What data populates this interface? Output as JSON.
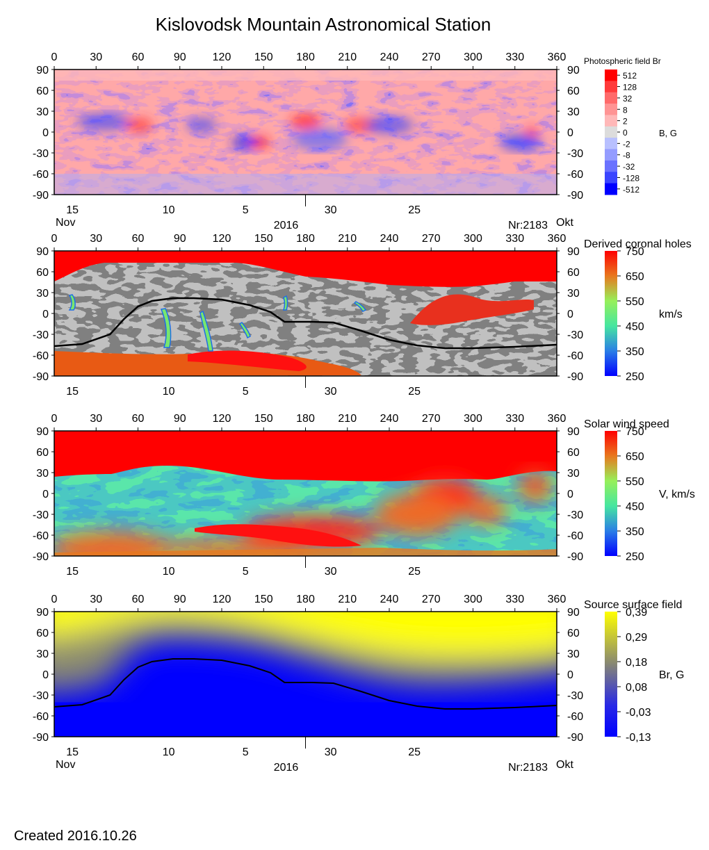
{
  "title": "Kislovodsk Mountain Astronomical Station",
  "created": "Created  2016.10.26",
  "chart_data": [
    {
      "type": "heatmap",
      "title": "Photospheric field Br",
      "unit_label": "B, G",
      "x_ticks": [
        0,
        30,
        60,
        90,
        120,
        150,
        180,
        210,
        240,
        270,
        300,
        330,
        360
      ],
      "y_ticks": [
        90,
        60,
        30,
        0,
        -30,
        -60,
        -90
      ],
      "date_ticks": [
        "15",
        "10",
        "5",
        "30",
        "25"
      ],
      "month_left": "Nov",
      "month_right": "Okt",
      "year": "2016",
      "rotation": "Nr:2183",
      "colorbar": {
        "labels": [
          "512",
          "128",
          "32",
          "8",
          "2",
          "0",
          "-2",
          "-8",
          "-32",
          "-128",
          "-512"
        ],
        "colors": [
          "#ff0000",
          "#ff3a3a",
          "#ff6a6a",
          "#ff9494",
          "#ffb8b8",
          "#dcdcdc",
          "#b8c0ff",
          "#949cff",
          "#6a72ff",
          "#3a45ff",
          "#0000ff"
        ]
      }
    },
    {
      "type": "heatmap",
      "title": "Derived coronal holes",
      "unit_label": "km/s",
      "x_ticks": [
        0,
        30,
        60,
        90,
        120,
        150,
        180,
        210,
        240,
        270,
        300,
        330,
        360
      ],
      "y_ticks": [
        90,
        60,
        30,
        0,
        -30,
        -60,
        -90
      ],
      "date_ticks": [
        "15",
        "10",
        "5",
        "30",
        "25"
      ],
      "neutral_line": [
        [
          0,
          -47
        ],
        [
          20,
          -44
        ],
        [
          40,
          -30
        ],
        [
          50,
          -8
        ],
        [
          60,
          10
        ],
        [
          70,
          18
        ],
        [
          85,
          22
        ],
        [
          100,
          22
        ],
        [
          120,
          20
        ],
        [
          140,
          12
        ],
        [
          155,
          2
        ],
        [
          165,
          -12
        ],
        [
          185,
          -12
        ],
        [
          200,
          -13
        ],
        [
          220,
          -25
        ],
        [
          240,
          -38
        ],
        [
          260,
          -46
        ],
        [
          280,
          -50
        ],
        [
          300,
          -50
        ],
        [
          330,
          -48
        ],
        [
          360,
          -45
        ]
      ],
      "colorbar": {
        "labels": [
          "750",
          "650",
          "550",
          "450",
          "350",
          "250"
        ],
        "range": [
          250,
          750
        ]
      }
    },
    {
      "type": "heatmap",
      "title": "Solar wind speed",
      "unit_label": "V, km/s",
      "x_ticks": [
        0,
        30,
        60,
        90,
        120,
        150,
        180,
        210,
        240,
        270,
        300,
        330,
        360
      ],
      "y_ticks": [
        90,
        60,
        30,
        0,
        -30,
        -60,
        -90
      ],
      "date_ticks": [
        "15",
        "10",
        "5",
        "30",
        "25"
      ],
      "colorbar": {
        "labels": [
          "750",
          "650",
          "550",
          "450",
          "350",
          "250"
        ],
        "range": [
          250,
          750
        ]
      }
    },
    {
      "type": "heatmap",
      "title": "Source surface field",
      "unit_label": "Br, G",
      "x_ticks": [
        0,
        30,
        60,
        90,
        120,
        150,
        180,
        210,
        240,
        270,
        300,
        330,
        360
      ],
      "y_ticks": [
        90,
        60,
        30,
        0,
        -30,
        -60,
        -90
      ],
      "date_ticks": [
        "15",
        "10",
        "5",
        "30",
        "25"
      ],
      "month_left": "Nov",
      "month_right": "Okt",
      "year": "2016",
      "rotation": "Nr:2183",
      "neutral_line": [
        [
          0,
          -47
        ],
        [
          20,
          -44
        ],
        [
          40,
          -30
        ],
        [
          50,
          -8
        ],
        [
          60,
          10
        ],
        [
          70,
          18
        ],
        [
          85,
          22
        ],
        [
          100,
          22
        ],
        [
          120,
          20
        ],
        [
          140,
          12
        ],
        [
          155,
          2
        ],
        [
          165,
          -12
        ],
        [
          185,
          -12
        ],
        [
          200,
          -13
        ],
        [
          220,
          -25
        ],
        [
          240,
          -38
        ],
        [
          260,
          -46
        ],
        [
          280,
          -50
        ],
        [
          300,
          -50
        ],
        [
          330,
          -48
        ],
        [
          360,
          -45
        ]
      ],
      "colorbar": {
        "labels": [
          "0,39",
          "0,29",
          "0,18",
          "0,08",
          "-0,03",
          "-0,13"
        ],
        "range": [
          -0.13,
          0.39
        ]
      }
    }
  ]
}
